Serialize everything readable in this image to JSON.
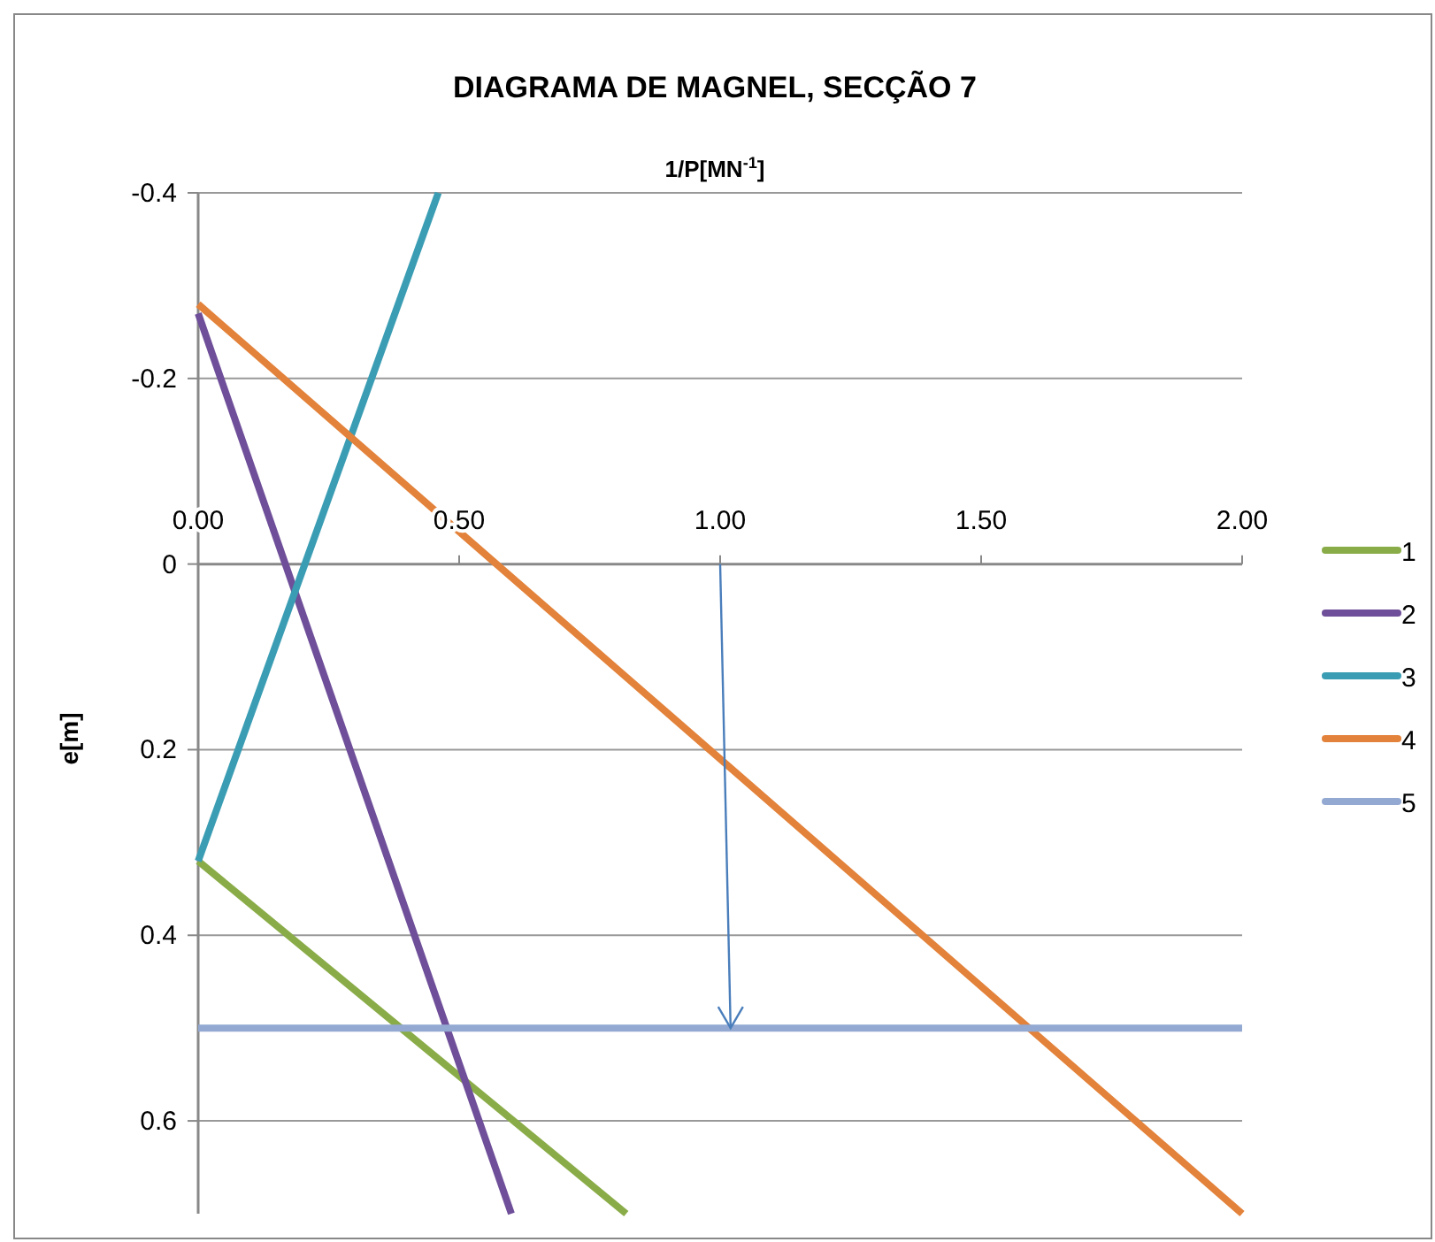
{
  "chart_data": {
    "type": "line",
    "title": "DIAGRAMA DE MAGNEL, SECÇÃO 7",
    "xlabel": "1/P[MN$^{-1}$]",
    "ylabel": "e[m]",
    "series": [
      {
        "name": "1",
        "color": "#8aac48",
        "x": [
          0,
          0.82
        ],
        "values": [
          0.32,
          0.7
        ]
      },
      {
        "name": "2",
        "color": "#6f4f99",
        "x": [
          0,
          0.6
        ],
        "values": [
          -0.27,
          0.7
        ]
      },
      {
        "name": "3",
        "color": "#3b9db3",
        "x": [
          0,
          0.46
        ],
        "values": [
          0.32,
          -0.4
        ]
      },
      {
        "name": "4",
        "color": "#e3823a",
        "x": [
          0,
          2.0
        ],
        "values": [
          -0.28,
          0.7
        ]
      },
      {
        "name": "5",
        "color": "#93a9d2",
        "x": [
          0,
          2.0
        ],
        "values": [
          0.5,
          0.5
        ]
      }
    ],
    "xlim": [
      0,
      2
    ],
    "xticks": [
      {
        "value": 0,
        "label": "0.00"
      },
      {
        "value": 0.5,
        "label": "0.50"
      },
      {
        "value": 1,
        "label": "1.00"
      },
      {
        "value": 1.5,
        "label": "1.50"
      },
      {
        "value": 2,
        "label": "2.00"
      }
    ],
    "ylim": [
      0.7,
      -0.4
    ],
    "yticks": [
      -0.4,
      -0.2,
      0,
      0.2,
      0.4,
      0.6
    ],
    "grid": "y",
    "legend": "right",
    "marker": "none",
    "line_style": "solid"
  }
}
